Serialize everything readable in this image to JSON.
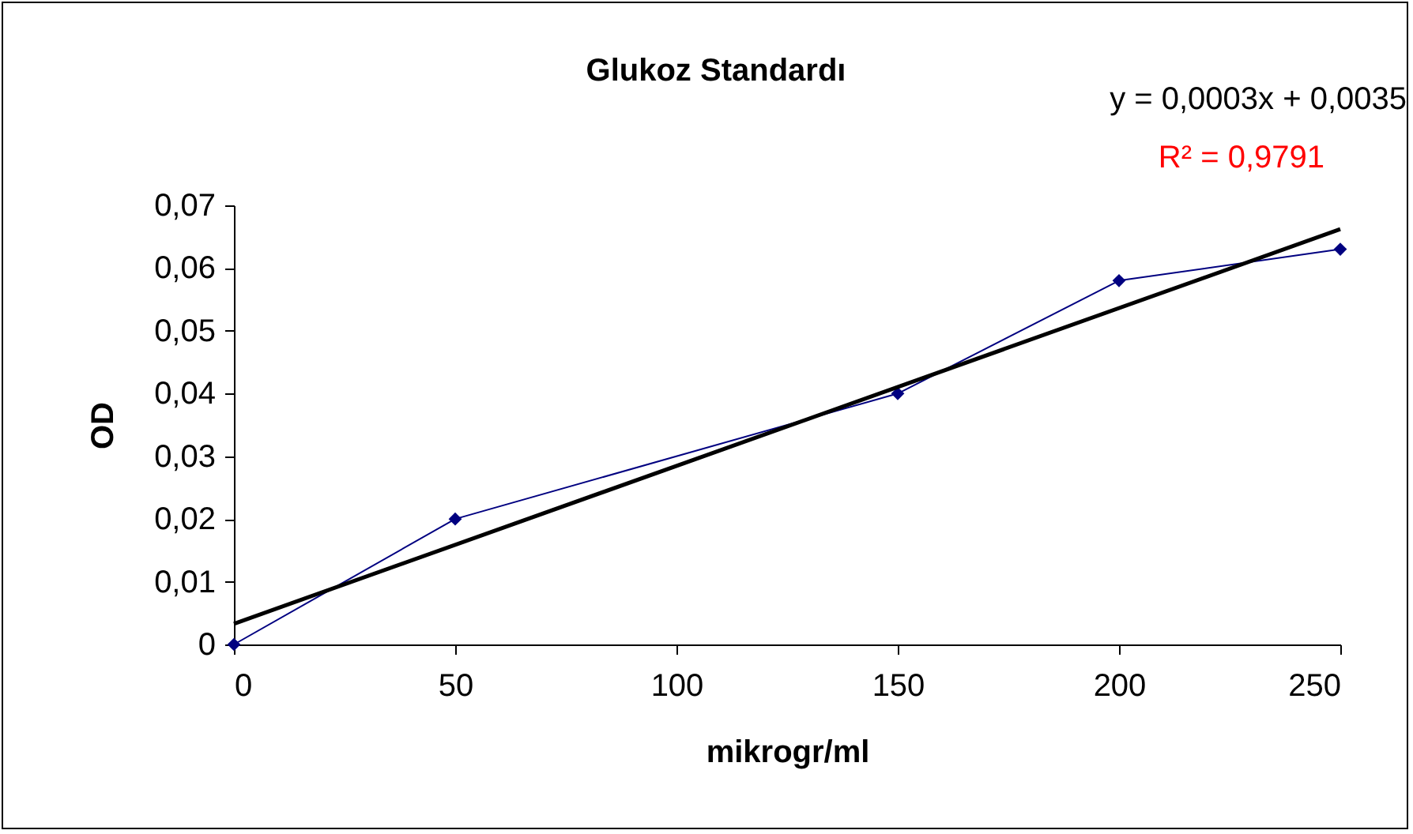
{
  "chart_data": {
    "type": "line",
    "title": "Glukoz Standardı",
    "xlabel": "mikrogr/ml",
    "ylabel": "OD",
    "x": [
      0,
      50,
      150,
      200,
      250
    ],
    "series": [
      {
        "color": "#000080",
        "values": [
          0,
          0.02,
          0.04,
          0.058,
          0.063
        ],
        "marker": "diamond"
      },
      {
        "type": "line",
        "color": "#000000",
        "x": [
          0,
          250
        ],
        "values": [
          0.0033,
          0.0662
        ],
        "marker": "none"
      }
    ],
    "xlim": [
      0,
      250
    ],
    "xticks": [
      0,
      50,
      100,
      150,
      200,
      250
    ],
    "ylim": [
      0,
      0.07
    ],
    "yticks": [
      0,
      {
        "value": 0.01,
        "label": "0,01"
      },
      {
        "value": 0.02,
        "label": "0,02"
      },
      {
        "value": 0.03,
        "label": "0,03"
      },
      {
        "value": 0.04,
        "label": "0,04"
      },
      {
        "value": 0.05,
        "label": "0,05"
      },
      {
        "value": 0.06,
        "label": "0,06"
      },
      {
        "value": 0.07,
        "label": "0,07"
      }
    ],
    "annotations": [
      "y = 0,0003x + 0,0035",
      "R² = 0,9791"
    ],
    "grid": false
  }
}
